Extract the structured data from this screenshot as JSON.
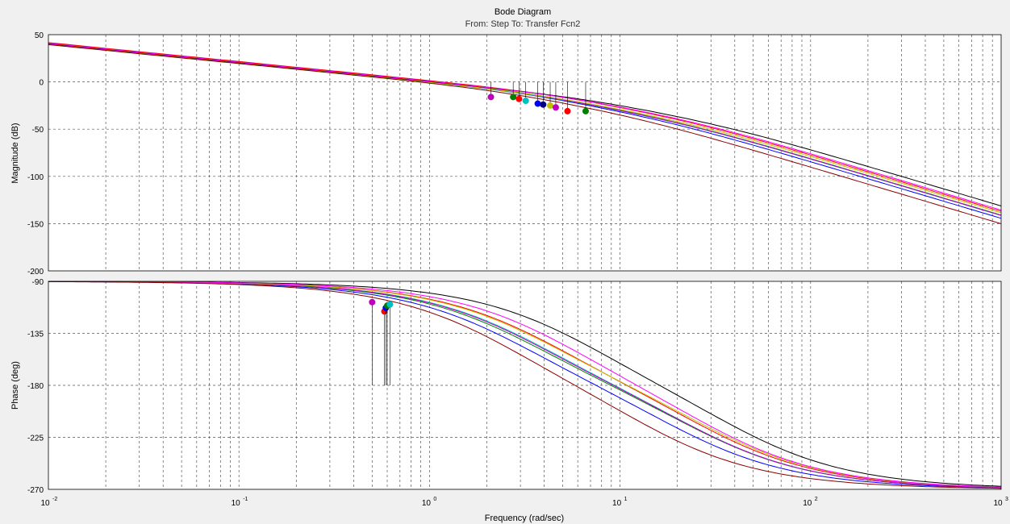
{
  "title": "Bode Diagram",
  "subtitle": "From: Step  To: Transfer Fcn2",
  "colors": {
    "background": "#f0f0f0",
    "plot_bg": "#ffffff",
    "grid": "#555555",
    "series": [
      "#0000ff",
      "#008000",
      "#ff0000",
      "#00bfbf",
      "#bf00bf",
      "#bfbf00",
      "#000000",
      "#ff00ff",
      "#8b0000"
    ]
  },
  "chart_data": [
    {
      "type": "line",
      "title": "Bode Diagram",
      "subtitle": "From: Step  To: Transfer Fcn2",
      "ylabel": "Magnitude (dB)",
      "xlabel": "",
      "xscale": "log",
      "xlim": [
        0.01,
        1000
      ],
      "ylim": [
        -200,
        50
      ],
      "yticks": [
        50,
        0,
        -50,
        -100,
        -150,
        -200
      ],
      "grid": true,
      "series_model": {
        "k": [
          1.08,
          1.12,
          1.2,
          0.97,
          1.02,
          0.98,
          1.05,
          1.1,
          0.93
        ],
        "pole_a": [
          2.8,
          3.2,
          4.2,
          3.5,
          3.4,
          4.0,
          6.5,
          5.0,
          2.4
        ],
        "pole_b": [
          20,
          25,
          28,
          25,
          25,
          30,
          40,
          30,
          14
        ]
      },
      "crossover_markers": [
        {
          "x": 2.1,
          "y": -16,
          "color": "#bf00bf"
        },
        {
          "x": 2.75,
          "y": -16,
          "color": "#008000"
        },
        {
          "x": 2.95,
          "y": -18,
          "color": "#ff0000"
        },
        {
          "x": 3.2,
          "y": -20,
          "color": "#00bfbf"
        },
        {
          "x": 3.7,
          "y": -23,
          "color": "#0000ff"
        },
        {
          "x": 3.95,
          "y": -24,
          "color": "#000080"
        },
        {
          "x": 4.3,
          "y": -25,
          "color": "#bfbf00"
        },
        {
          "x": 4.6,
          "y": -27,
          "color": "#bf00bf"
        },
        {
          "x": 5.3,
          "y": -31,
          "color": "#ff0000"
        },
        {
          "x": 6.6,
          "y": -31,
          "color": "#008000"
        }
      ]
    },
    {
      "type": "line",
      "ylabel": "Phase (deg)",
      "xlabel": "Frequency  (rad/sec)",
      "xscale": "log",
      "xlim": [
        0.01,
        1000
      ],
      "ylim": [
        -270,
        -90
      ],
      "yticks": [
        -90,
        -135,
        -180,
        -225,
        -270
      ],
      "xticks": [
        {
          "mant": "10",
          "exp": "-2"
        },
        {
          "mant": "10",
          "exp": "-1"
        },
        {
          "mant": "10",
          "exp": "0"
        },
        {
          "mant": "10",
          "exp": "1"
        },
        {
          "mant": "10",
          "exp": "2"
        },
        {
          "mant": "10",
          "exp": "3"
        }
      ],
      "grid": true,
      "phase_markers": [
        {
          "x": 0.5,
          "y": -108,
          "color": "#bf00bf"
        },
        {
          "x": 0.58,
          "y": -116,
          "color": "#ff0000"
        },
        {
          "x": 0.59,
          "y": -113,
          "color": "#0000ff"
        },
        {
          "x": 0.6,
          "y": -111,
          "color": "#008000"
        },
        {
          "x": 0.62,
          "y": -110,
          "color": "#00bfbf"
        }
      ]
    }
  ]
}
